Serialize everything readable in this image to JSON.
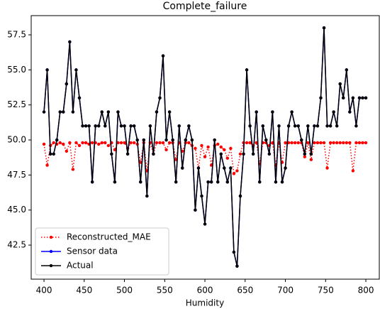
{
  "chart_data": {
    "type": "line",
    "title": "Complete_failure",
    "xlabel": "Humidity",
    "x": [
      400,
      404,
      408,
      412,
      416,
      420,
      424,
      428,
      432,
      436,
      440,
      444,
      448,
      452,
      456,
      460,
      464,
      468,
      472,
      476,
      480,
      484,
      488,
      492,
      496,
      500,
      504,
      508,
      512,
      516,
      520,
      524,
      528,
      532,
      536,
      540,
      544,
      548,
      552,
      556,
      560,
      564,
      568,
      572,
      576,
      580,
      584,
      588,
      592,
      596,
      600,
      604,
      608,
      612,
      616,
      620,
      624,
      628,
      632,
      636,
      640,
      644,
      648,
      652,
      656,
      660,
      664,
      668,
      672,
      676,
      680,
      684,
      688,
      692,
      696,
      700,
      704,
      708,
      712,
      716,
      720,
      724,
      728,
      732,
      736,
      740,
      744,
      748,
      752,
      756,
      760,
      764,
      768,
      772,
      776,
      780,
      784,
      788,
      792,
      796,
      800
    ],
    "series": [
      {
        "name": "Reconstructed_MAE",
        "color": "#ff0000",
        "linestyle": "dotted",
        "values": [
          49.7,
          48.2,
          49.6,
          49.8,
          49.7,
          49.8,
          49.7,
          49.2,
          49.8,
          47.9,
          49.8,
          49.6,
          49.8,
          49.8,
          49.7,
          49.8,
          49.8,
          49.7,
          49.8,
          49.8,
          49.6,
          49.8,
          49.3,
          49.8,
          49.8,
          49.8,
          49.4,
          49.8,
          49.8,
          49.7,
          48.4,
          49.8,
          47.8,
          49.8,
          49.0,
          49.8,
          49.8,
          49.8,
          49.3,
          49.8,
          49.8,
          48.6,
          49.8,
          49.2,
          49.8,
          49.8,
          49.6,
          49.4,
          48.0,
          49.6,
          48.8,
          49.5,
          48.2,
          49.6,
          49.7,
          49.5,
          49.3,
          48.7,
          49.4,
          47.6,
          47.8,
          49.0,
          49.8,
          49.8,
          49.8,
          49.6,
          49.8,
          48.3,
          49.8,
          49.8,
          49.6,
          49.8,
          48.2,
          49.8,
          48.4,
          49.8,
          49.8,
          49.8,
          49.8,
          49.8,
          49.8,
          48.8,
          49.8,
          48.6,
          49.8,
          49.8,
          49.8,
          49.8,
          48.0,
          49.8,
          49.8,
          49.8,
          49.8,
          49.8,
          49.8,
          49.8,
          47.8,
          49.8,
          49.8,
          49.8,
          49.8
        ]
      },
      {
        "name": "Sensor data",
        "color": "#0000ff",
        "linestyle": "solid",
        "values": [
          52,
          55,
          49,
          49,
          50,
          52,
          52,
          54,
          57,
          52,
          55,
          53,
          51,
          51,
          51,
          47,
          51,
          51,
          52,
          51,
          52,
          49,
          47,
          52,
          51,
          51,
          49,
          51,
          51,
          50,
          47,
          50,
          46,
          51,
          49,
          52,
          53,
          56,
          50,
          52,
          50,
          47,
          51,
          48,
          50,
          51,
          50,
          45,
          48,
          46,
          44,
          47,
          47,
          50,
          47,
          49,
          48,
          47,
          48,
          42,
          41,
          46,
          49,
          55,
          51,
          49,
          52,
          47,
          51,
          50,
          49,
          52,
          47,
          51,
          47,
          48,
          51,
          52,
          51,
          51,
          50,
          49,
          51,
          49,
          51,
          51,
          53,
          58,
          51,
          51,
          52,
          51,
          54,
          53,
          55,
          52,
          53,
          51,
          53,
          53,
          53
        ]
      },
      {
        "name": "Actual",
        "color": "#000000",
        "linestyle": "solid",
        "values": [
          52,
          55,
          49,
          49,
          50,
          52,
          52,
          54,
          57,
          52,
          55,
          53,
          51,
          51,
          51,
          47,
          51,
          51,
          52,
          51,
          52,
          49,
          47,
          52,
          51,
          51,
          49,
          51,
          51,
          50,
          47,
          50,
          46,
          51,
          49,
          52,
          53,
          56,
          50,
          52,
          50,
          47,
          51,
          48,
          50,
          51,
          50,
          45,
          48,
          46,
          44,
          47,
          47,
          50,
          47,
          49,
          48,
          47,
          48,
          42,
          41,
          46,
          49,
          55,
          51,
          49,
          52,
          47,
          51,
          50,
          49,
          52,
          47,
          51,
          47,
          48,
          51,
          52,
          51,
          51,
          50,
          49,
          51,
          49,
          51,
          51,
          53,
          58,
          51,
          51,
          52,
          51,
          54,
          53,
          55,
          52,
          53,
          51,
          53,
          53,
          53
        ]
      }
    ],
    "xlim": [
      384.1,
      816.7
    ],
    "ylim": [
      40.07,
      58.87
    ],
    "xticks": [
      400,
      450,
      500,
      550,
      600,
      650,
      700,
      750,
      800
    ],
    "yticks": [
      42.5,
      {
        "value": 45,
        "label": "45.0"
      },
      47.5,
      {
        "value": 50,
        "label": "50.0"
      },
      52.5,
      {
        "value": 55,
        "label": "55.0"
      },
      57.5
    ],
    "legend": "lower left"
  }
}
